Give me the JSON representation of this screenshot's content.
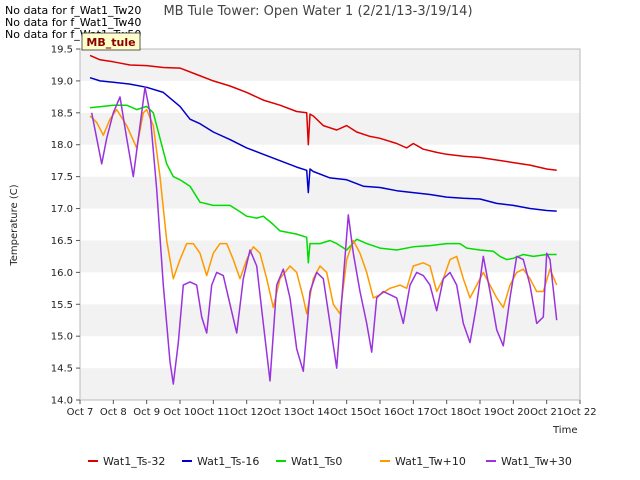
{
  "nodata_lines": [
    "No data for f_Wat1_Tw20",
    "No data for f_Wat1_Tw40",
    "No data for f_Wat1_Tw50"
  ],
  "chart_data": {
    "type": "line",
    "title": "MB Tule Tower: Open Water 1 (2/21/13-3/19/14)",
    "xlabel": "Time",
    "ylabel": "Temperature (C)",
    "site_badge": "MB_tule",
    "x_ticks": [
      "Oct 7",
      "Oct 8",
      "Oct 9",
      "Oct 10",
      "Oct 11",
      "Oct 12",
      "Oct 13",
      "Oct 14",
      "Oct 15",
      "Oct 16",
      "Oct 17",
      "Oct 18",
      "Oct 19",
      "Oct 20",
      "Oct 21",
      "Oct 22"
    ],
    "xlim": [
      7,
      22
    ],
    "ylim": [
      14.0,
      19.5
    ],
    "y_ticks": [
      "14.0",
      "14.5",
      "15.0",
      "15.5",
      "16.0",
      "16.5",
      "17.0",
      "17.5",
      "18.0",
      "18.5",
      "19.0",
      "19.5"
    ],
    "grid": "horizontal bands",
    "legend_position": "bottom",
    "series": [
      {
        "name": "Wat1_Ts-32",
        "color": "#dd0000",
        "points": [
          [
            7.3,
            19.4
          ],
          [
            7.6,
            19.33
          ],
          [
            8.0,
            19.3
          ],
          [
            8.5,
            19.25
          ],
          [
            9.0,
            19.24
          ],
          [
            9.5,
            19.21
          ],
          [
            10.0,
            19.2
          ],
          [
            10.5,
            19.1
          ],
          [
            11.0,
            19.0
          ],
          [
            11.5,
            18.92
          ],
          [
            12.0,
            18.82
          ],
          [
            12.5,
            18.7
          ],
          [
            13.0,
            18.62
          ],
          [
            13.5,
            18.52
          ],
          [
            13.8,
            18.5
          ],
          [
            13.85,
            18.0
          ],
          [
            13.9,
            18.48
          ],
          [
            14.0,
            18.45
          ],
          [
            14.3,
            18.3
          ],
          [
            14.7,
            18.23
          ],
          [
            15.0,
            18.3
          ],
          [
            15.3,
            18.2
          ],
          [
            15.7,
            18.13
          ],
          [
            16.0,
            18.1
          ],
          [
            16.5,
            18.02
          ],
          [
            16.8,
            17.95
          ],
          [
            17.0,
            18.02
          ],
          [
            17.3,
            17.93
          ],
          [
            17.7,
            17.88
          ],
          [
            18.0,
            17.85
          ],
          [
            18.5,
            17.82
          ],
          [
            19.0,
            17.8
          ],
          [
            19.5,
            17.76
          ],
          [
            20.0,
            17.72
          ],
          [
            20.5,
            17.68
          ],
          [
            21.0,
            17.62
          ],
          [
            21.3,
            17.6
          ]
        ]
      },
      {
        "name": "Wat1_Ts-16",
        "color": "#0000cc",
        "points": [
          [
            7.3,
            19.05
          ],
          [
            7.6,
            19.0
          ],
          [
            8.0,
            18.98
          ],
          [
            8.5,
            18.95
          ],
          [
            9.0,
            18.9
          ],
          [
            9.5,
            18.82
          ],
          [
            10.0,
            18.6
          ],
          [
            10.3,
            18.4
          ],
          [
            10.6,
            18.33
          ],
          [
            11.0,
            18.2
          ],
          [
            11.5,
            18.08
          ],
          [
            12.0,
            17.95
          ],
          [
            12.5,
            17.85
          ],
          [
            13.0,
            17.75
          ],
          [
            13.5,
            17.65
          ],
          [
            13.8,
            17.6
          ],
          [
            13.85,
            17.25
          ],
          [
            13.9,
            17.62
          ],
          [
            14.0,
            17.58
          ],
          [
            14.5,
            17.48
          ],
          [
            15.0,
            17.45
          ],
          [
            15.5,
            17.35
          ],
          [
            16.0,
            17.33
          ],
          [
            16.5,
            17.28
          ],
          [
            17.0,
            17.25
          ],
          [
            17.5,
            17.22
          ],
          [
            18.0,
            17.18
          ],
          [
            18.5,
            17.16
          ],
          [
            19.0,
            17.15
          ],
          [
            19.5,
            17.08
          ],
          [
            20.0,
            17.05
          ],
          [
            20.5,
            17.0
          ],
          [
            21.0,
            16.97
          ],
          [
            21.3,
            16.96
          ]
        ]
      },
      {
        "name": "Wat1_Ts0",
        "color": "#00dd00",
        "points": [
          [
            7.3,
            18.58
          ],
          [
            7.7,
            18.6
          ],
          [
            8.0,
            18.62
          ],
          [
            8.4,
            18.62
          ],
          [
            8.7,
            18.55
          ],
          [
            9.0,
            18.6
          ],
          [
            9.2,
            18.5
          ],
          [
            9.4,
            18.1
          ],
          [
            9.6,
            17.7
          ],
          [
            9.8,
            17.5
          ],
          [
            10.0,
            17.45
          ],
          [
            10.3,
            17.35
          ],
          [
            10.6,
            17.1
          ],
          [
            11.0,
            17.05
          ],
          [
            11.5,
            17.05
          ],
          [
            11.8,
            16.95
          ],
          [
            12.0,
            16.88
          ],
          [
            12.3,
            16.85
          ],
          [
            12.5,
            16.88
          ],
          [
            12.8,
            16.75
          ],
          [
            13.0,
            16.65
          ],
          [
            13.5,
            16.6
          ],
          [
            13.8,
            16.55
          ],
          [
            13.85,
            16.15
          ],
          [
            13.9,
            16.45
          ],
          [
            14.2,
            16.45
          ],
          [
            14.5,
            16.5
          ],
          [
            14.7,
            16.45
          ],
          [
            15.0,
            16.35
          ],
          [
            15.3,
            16.52
          ],
          [
            15.6,
            16.45
          ],
          [
            16.0,
            16.38
          ],
          [
            16.5,
            16.35
          ],
          [
            17.0,
            16.4
          ],
          [
            17.5,
            16.42
          ],
          [
            18.0,
            16.45
          ],
          [
            18.4,
            16.45
          ],
          [
            18.6,
            16.38
          ],
          [
            19.0,
            16.35
          ],
          [
            19.4,
            16.33
          ],
          [
            19.6,
            16.25
          ],
          [
            19.8,
            16.2
          ],
          [
            20.0,
            16.22
          ],
          [
            20.3,
            16.28
          ],
          [
            20.6,
            16.25
          ],
          [
            21.0,
            16.28
          ],
          [
            21.3,
            16.28
          ]
        ]
      },
      {
        "name": "Wat1_Tw+10",
        "color": "#ff9900",
        "points": [
          [
            7.3,
            18.45
          ],
          [
            7.5,
            18.35
          ],
          [
            7.7,
            18.15
          ],
          [
            7.9,
            18.4
          ],
          [
            8.1,
            18.55
          ],
          [
            8.4,
            18.3
          ],
          [
            8.7,
            17.95
          ],
          [
            8.9,
            18.5
          ],
          [
            9.0,
            18.55
          ],
          [
            9.2,
            18.3
          ],
          [
            9.4,
            17.5
          ],
          [
            9.6,
            16.5
          ],
          [
            9.8,
            15.9
          ],
          [
            10.0,
            16.2
          ],
          [
            10.2,
            16.45
          ],
          [
            10.4,
            16.45
          ],
          [
            10.6,
            16.3
          ],
          [
            10.8,
            15.95
          ],
          [
            11.0,
            16.3
          ],
          [
            11.2,
            16.45
          ],
          [
            11.4,
            16.45
          ],
          [
            11.6,
            16.2
          ],
          [
            11.8,
            15.9
          ],
          [
            12.0,
            16.2
          ],
          [
            12.2,
            16.4
          ],
          [
            12.4,
            16.3
          ],
          [
            12.6,
            15.9
          ],
          [
            12.8,
            15.45
          ],
          [
            13.0,
            15.9
          ],
          [
            13.3,
            16.1
          ],
          [
            13.5,
            16.0
          ],
          [
            13.7,
            15.6
          ],
          [
            13.8,
            15.35
          ],
          [
            14.0,
            15.9
          ],
          [
            14.2,
            16.1
          ],
          [
            14.4,
            16.0
          ],
          [
            14.6,
            15.5
          ],
          [
            14.8,
            15.35
          ],
          [
            15.0,
            16.2
          ],
          [
            15.2,
            16.5
          ],
          [
            15.4,
            16.3
          ],
          [
            15.6,
            16.0
          ],
          [
            15.8,
            15.6
          ],
          [
            16.0,
            15.65
          ],
          [
            16.3,
            15.75
          ],
          [
            16.6,
            15.8
          ],
          [
            16.8,
            15.75
          ],
          [
            17.0,
            16.1
          ],
          [
            17.3,
            16.15
          ],
          [
            17.5,
            16.1
          ],
          [
            17.7,
            15.7
          ],
          [
            17.9,
            15.9
          ],
          [
            18.1,
            16.2
          ],
          [
            18.3,
            16.25
          ],
          [
            18.5,
            15.9
          ],
          [
            18.7,
            15.6
          ],
          [
            18.9,
            15.8
          ],
          [
            19.1,
            16.0
          ],
          [
            19.3,
            15.8
          ],
          [
            19.5,
            15.6
          ],
          [
            19.7,
            15.45
          ],
          [
            19.9,
            15.8
          ],
          [
            20.1,
            16.0
          ],
          [
            20.3,
            16.05
          ],
          [
            20.5,
            15.9
          ],
          [
            20.7,
            15.7
          ],
          [
            20.9,
            15.7
          ],
          [
            21.1,
            16.05
          ],
          [
            21.3,
            15.8
          ]
        ]
      },
      {
        "name": "Wat1_Tw+30",
        "color": "#9933dd",
        "points": [
          [
            7.35,
            18.5
          ],
          [
            7.5,
            18.1
          ],
          [
            7.65,
            17.7
          ],
          [
            7.8,
            18.1
          ],
          [
            8.0,
            18.5
          ],
          [
            8.2,
            18.75
          ],
          [
            8.4,
            18.1
          ],
          [
            8.6,
            17.5
          ],
          [
            8.8,
            18.3
          ],
          [
            8.95,
            18.9
          ],
          [
            9.1,
            18.5
          ],
          [
            9.3,
            17.3
          ],
          [
            9.5,
            15.8
          ],
          [
            9.7,
            14.6
          ],
          [
            9.8,
            14.25
          ],
          [
            9.95,
            14.9
          ],
          [
            10.1,
            15.8
          ],
          [
            10.3,
            15.85
          ],
          [
            10.5,
            15.8
          ],
          [
            10.65,
            15.3
          ],
          [
            10.8,
            15.05
          ],
          [
            10.95,
            15.8
          ],
          [
            11.1,
            16.0
          ],
          [
            11.3,
            15.95
          ],
          [
            11.5,
            15.5
          ],
          [
            11.7,
            15.05
          ],
          [
            11.9,
            15.9
          ],
          [
            12.1,
            16.35
          ],
          [
            12.3,
            16.1
          ],
          [
            12.5,
            15.2
          ],
          [
            12.7,
            14.3
          ],
          [
            12.9,
            15.8
          ],
          [
            13.1,
            16.05
          ],
          [
            13.3,
            15.6
          ],
          [
            13.5,
            14.8
          ],
          [
            13.7,
            14.45
          ],
          [
            13.9,
            15.7
          ],
          [
            14.1,
            16.0
          ],
          [
            14.3,
            15.9
          ],
          [
            14.5,
            15.2
          ],
          [
            14.7,
            14.5
          ],
          [
            14.9,
            15.9
          ],
          [
            15.05,
            16.9
          ],
          [
            15.2,
            16.3
          ],
          [
            15.4,
            15.7
          ],
          [
            15.6,
            15.2
          ],
          [
            15.75,
            14.75
          ],
          [
            15.9,
            15.6
          ],
          [
            16.1,
            15.7
          ],
          [
            16.3,
            15.65
          ],
          [
            16.5,
            15.6
          ],
          [
            16.7,
            15.2
          ],
          [
            16.9,
            15.8
          ],
          [
            17.1,
            16.0
          ],
          [
            17.3,
            15.95
          ],
          [
            17.5,
            15.8
          ],
          [
            17.7,
            15.4
          ],
          [
            17.9,
            15.9
          ],
          [
            18.1,
            16.0
          ],
          [
            18.3,
            15.8
          ],
          [
            18.5,
            15.2
          ],
          [
            18.7,
            14.9
          ],
          [
            18.9,
            15.5
          ],
          [
            19.1,
            16.25
          ],
          [
            19.3,
            15.7
          ],
          [
            19.5,
            15.1
          ],
          [
            19.7,
            14.85
          ],
          [
            19.9,
            15.6
          ],
          [
            20.1,
            16.25
          ],
          [
            20.3,
            16.2
          ],
          [
            20.5,
            15.8
          ],
          [
            20.7,
            15.2
          ],
          [
            20.9,
            15.3
          ],
          [
            21.0,
            16.3
          ],
          [
            21.1,
            16.2
          ],
          [
            21.3,
            15.25
          ]
        ]
      }
    ]
  }
}
